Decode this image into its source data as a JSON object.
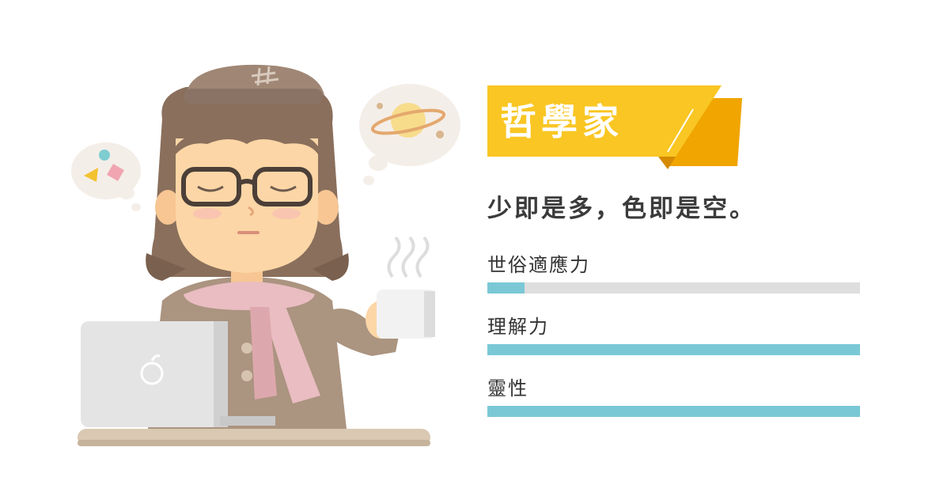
{
  "card": {
    "title": "哲學家",
    "quote": "少即是多，色即是空。"
  },
  "stats": [
    {
      "label": "世俗適應力",
      "value": 0.1
    },
    {
      "label": "理解力",
      "value": 1.0
    },
    {
      "label": "靈性",
      "value": 1.0
    }
  ],
  "colors": {
    "banner": "#f9c623",
    "banner_shadow": "#f0a500",
    "bar_fill": "#7ac8d6",
    "bar_track": "#dedede"
  },
  "illustration": {
    "icons": [
      "philosopher-character",
      "beret",
      "glasses",
      "scarf",
      "coffee-mug",
      "laptop",
      "apple-logo",
      "thought-bubble-planet",
      "thought-bubble-shapes"
    ]
  }
}
